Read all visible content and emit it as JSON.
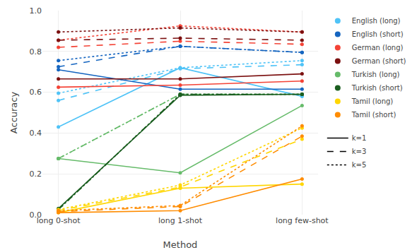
{
  "chart_data": {
    "type": "line",
    "x_label": "Method",
    "y_label": "Accuracy",
    "categories": [
      "long 0-shot",
      "long 1-shot",
      "long few-shot"
    ],
    "marker": "circle",
    "series": [
      {
        "name": "English (long)",
        "color": "#4FC3F7",
        "line_style": "solid",
        "values": [
          0.43,
          0.72,
          0.58
        ]
      },
      {
        "name": "English (long)",
        "color": "#4FC3F7",
        "line_style": "dashed",
        "values": [
          0.56,
          0.715,
          0.735
        ]
      },
      {
        "name": "English (long)",
        "color": "#4FC3F7",
        "line_style": "dotted",
        "values": [
          0.595,
          0.72,
          0.755
        ]
      },
      {
        "name": "English (short)",
        "color": "#1565C0",
        "line_style": "solid",
        "values": [
          0.71,
          0.615,
          0.615
        ]
      },
      {
        "name": "English (short)",
        "color": "#1565C0",
        "line_style": "dashed",
        "values": [
          0.725,
          0.825,
          0.795
        ]
      },
      {
        "name": "English (short)",
        "color": "#1565C0",
        "line_style": "dotted",
        "values": [
          0.755,
          0.825,
          0.795
        ]
      },
      {
        "name": "German (long)",
        "color": "#F44336",
        "line_style": "solid",
        "values": [
          0.625,
          0.635,
          0.655
        ]
      },
      {
        "name": "German (long)",
        "color": "#F44336",
        "line_style": "dashed",
        "values": [
          0.82,
          0.85,
          0.835
        ]
      },
      {
        "name": "German (long)",
        "color": "#F44336",
        "line_style": "dotted",
        "values": [
          0.855,
          0.925,
          0.895
        ]
      },
      {
        "name": "German (short)",
        "color": "#7B1010",
        "line_style": "solid",
        "values": [
          0.665,
          0.665,
          0.69
        ]
      },
      {
        "name": "German (short)",
        "color": "#7B1010",
        "line_style": "dashed",
        "values": [
          0.855,
          0.865,
          0.855
        ]
      },
      {
        "name": "German (short)",
        "color": "#7B1010",
        "line_style": "dotted",
        "values": [
          0.895,
          0.915,
          0.895
        ]
      },
      {
        "name": "Turkish (long)",
        "color": "#66BB6A",
        "line_style": "solid",
        "values": [
          0.275,
          0.205,
          0.535
        ]
      },
      {
        "name": "Turkish (long)",
        "color": "#66BB6A",
        "line_style": "dashed",
        "values": [
          0.275,
          0.59,
          0.59
        ]
      },
      {
        "name": "Turkish (long)",
        "color": "#66BB6A",
        "line_style": "dotted",
        "values": [
          0.275,
          0.59,
          0.59
        ]
      },
      {
        "name": "Turkish (short)",
        "color": "#1B5E20",
        "line_style": "solid",
        "values": [
          0.03,
          0.585,
          0.59
        ]
      },
      {
        "name": "Turkish (short)",
        "color": "#1B5E20",
        "line_style": "dashed",
        "values": [
          0.025,
          0.59,
          0.59
        ]
      },
      {
        "name": "Turkish (short)",
        "color": "#1B5E20",
        "line_style": "dotted",
        "values": [
          0.025,
          0.59,
          0.59
        ]
      },
      {
        "name": "Tamil (long)",
        "color": "#FFD600",
        "line_style": "solid",
        "values": [
          0.01,
          0.13,
          0.15
        ]
      },
      {
        "name": "Tamil (long)",
        "color": "#FFD600",
        "line_style": "dashed",
        "values": [
          0.02,
          0.135,
          0.37
        ]
      },
      {
        "name": "Tamil (long)",
        "color": "#FFD600",
        "line_style": "dotted",
        "values": [
          0.025,
          0.145,
          0.425
        ]
      },
      {
        "name": "Tamil (short)",
        "color": "#FF8C00",
        "line_style": "solid",
        "values": [
          0.01,
          0.02,
          0.175
        ]
      },
      {
        "name": "Tamil (short)",
        "color": "#FF8C00",
        "line_style": "dashed",
        "values": [
          0.015,
          0.04,
          0.385
        ]
      },
      {
        "name": "Tamil (short)",
        "color": "#FF8C00",
        "line_style": "dotted",
        "values": [
          0.02,
          0.045,
          0.435
        ]
      }
    ],
    "line_style_legend": [
      {
        "name": "k=1",
        "line_style": "solid"
      },
      {
        "name": "k=3",
        "line_style": "dashed"
      },
      {
        "name": "k=5",
        "line_style": "dotted"
      }
    ],
    "ylim": [
      0.0,
      1.0
    ],
    "yticks": [
      {
        "value": 0.0,
        "label": "0.0"
      },
      0.2,
      0.4,
      0.6,
      0.8,
      {
        "value": 1.0,
        "label": "1.0"
      }
    ],
    "grid": true,
    "legend": "right"
  }
}
